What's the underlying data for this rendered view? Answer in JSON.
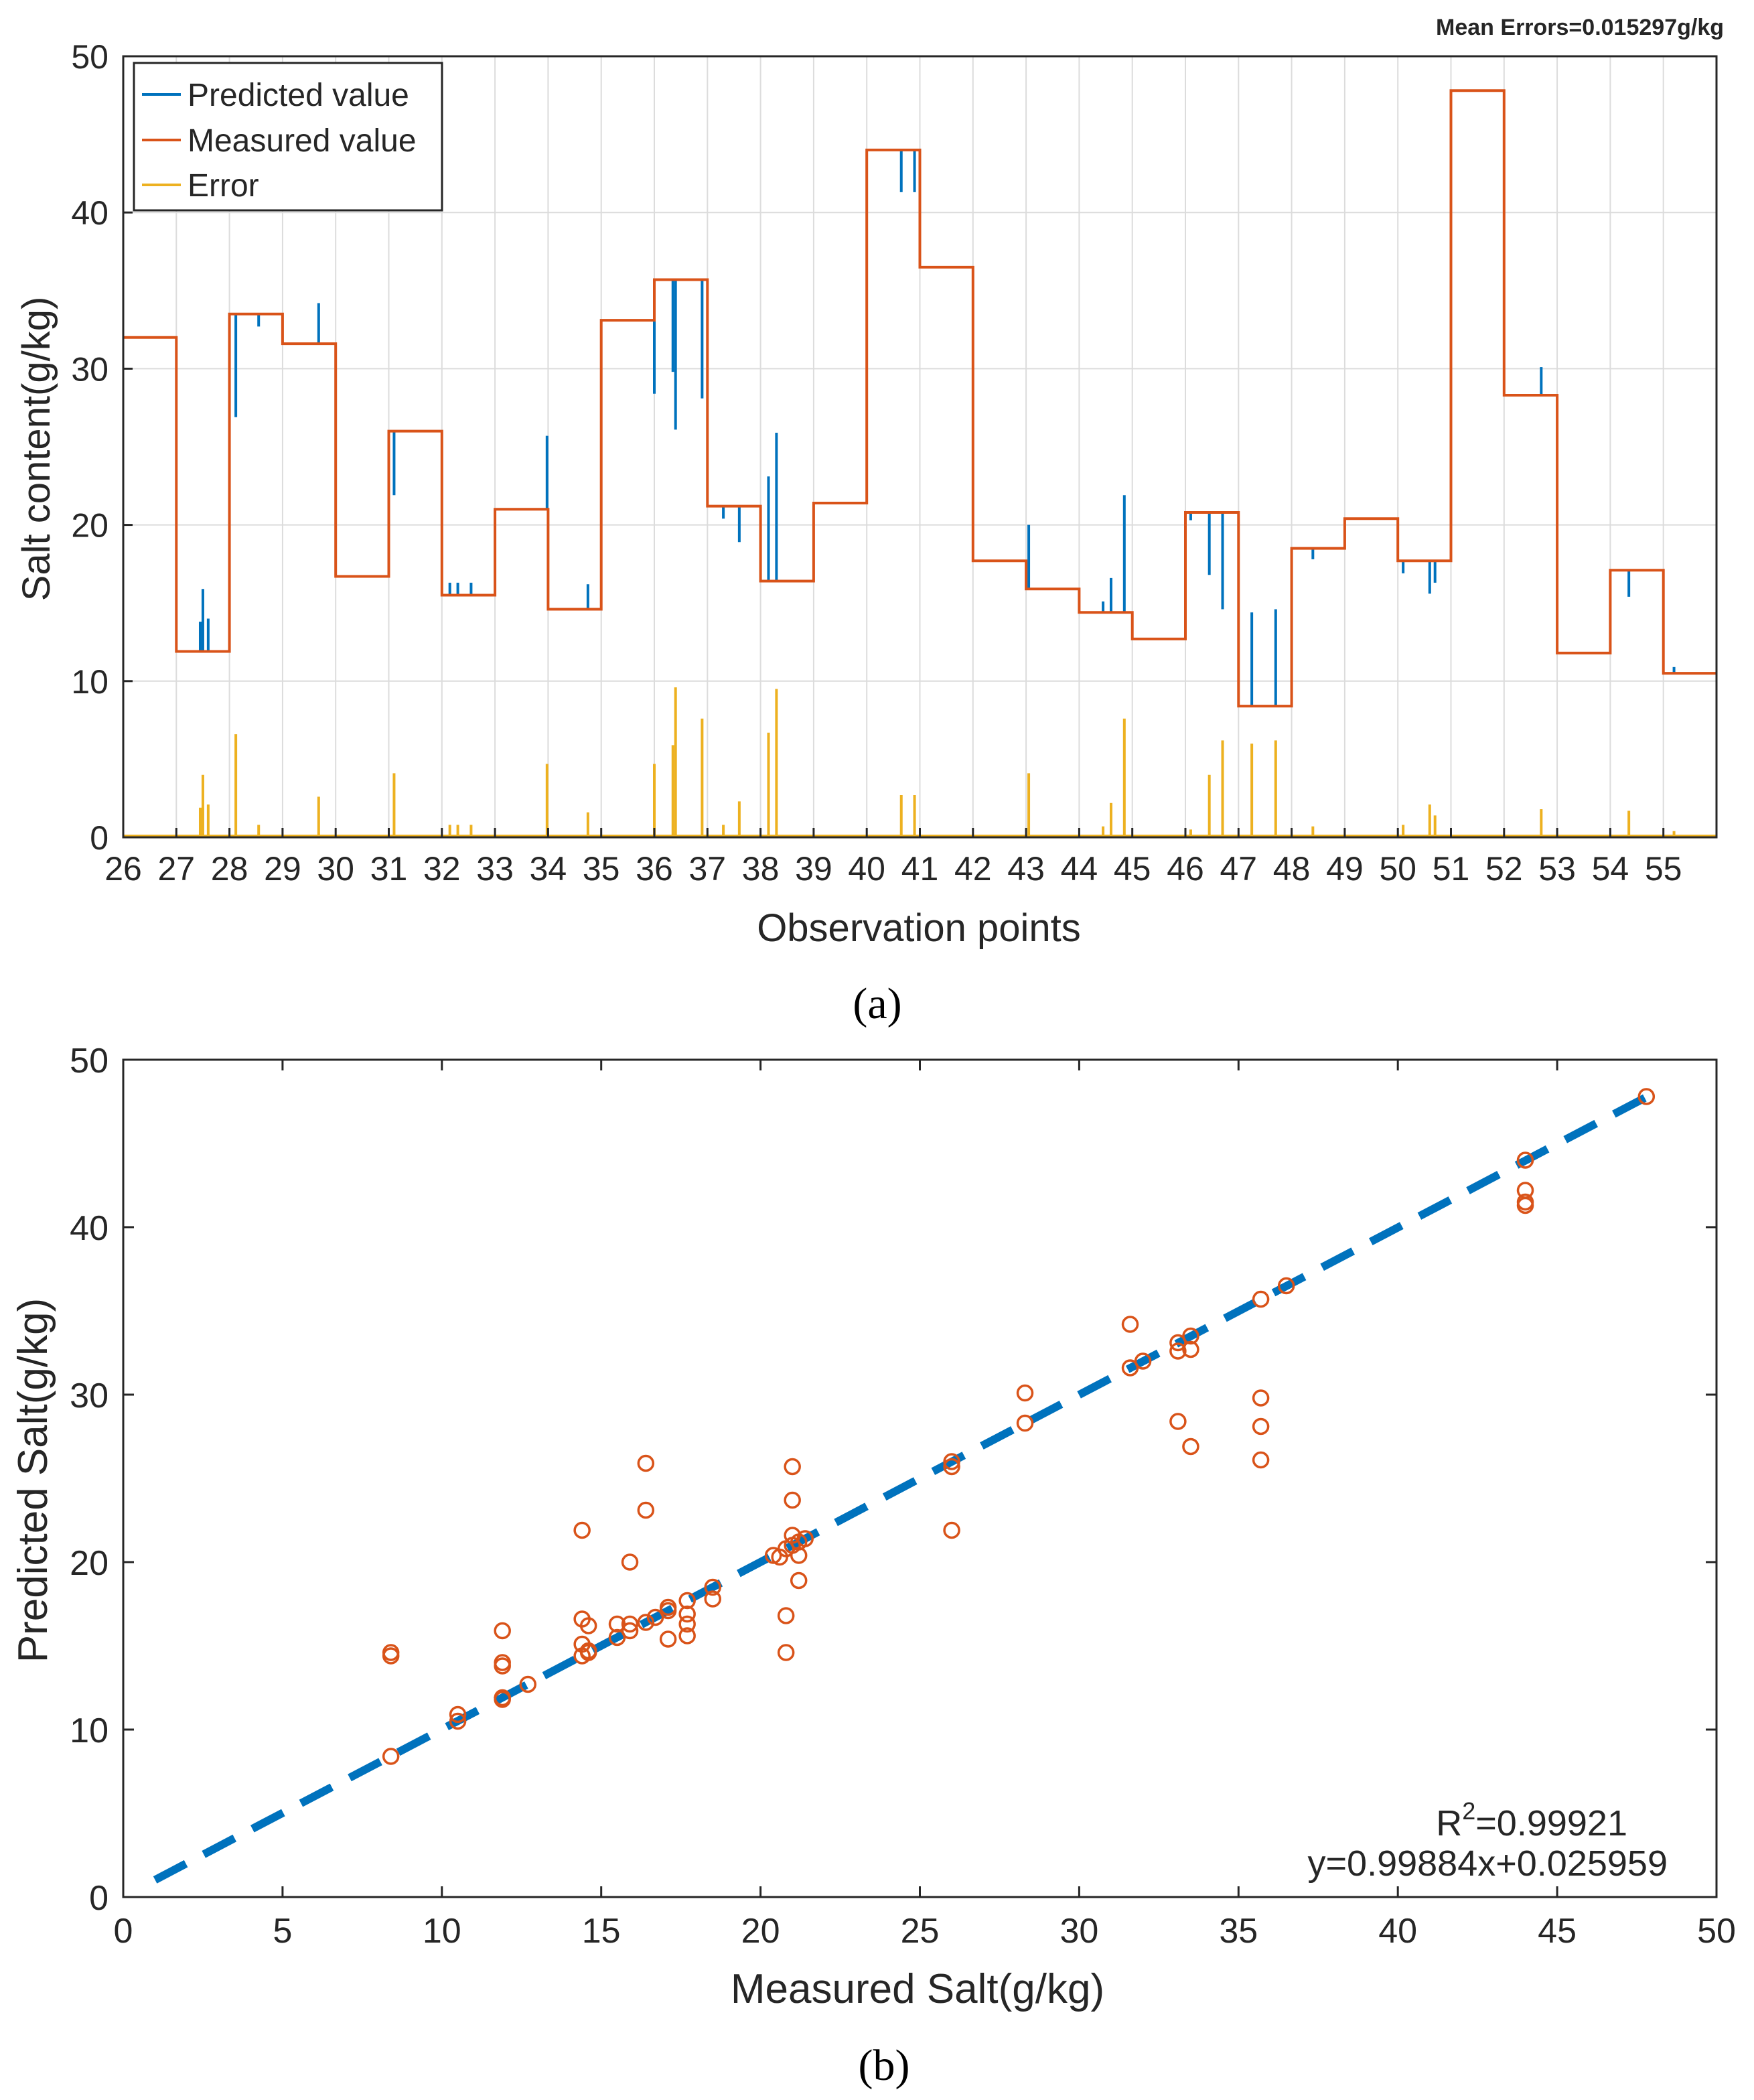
{
  "panel_labels": {
    "a": "(a)",
    "b": "(b)"
  },
  "chart_data": [
    {
      "type": "line",
      "panel": "a",
      "annotation": "Mean Errors=0.015297g/kg",
      "xlabel": "Observation points",
      "ylabel": "Salt content(g/kg)",
      "ylim": [
        0,
        50
      ],
      "yticks": [
        0,
        10,
        20,
        30,
        40,
        50
      ],
      "xlim": [
        26,
        56
      ],
      "xticks": [
        26,
        27,
        28,
        29,
        30,
        31,
        32,
        33,
        34,
        35,
        36,
        37,
        38,
        39,
        40,
        41,
        42,
        43,
        44,
        45,
        46,
        47,
        48,
        49,
        50,
        51,
        52,
        53,
        54,
        55
      ],
      "grid": true,
      "legend": {
        "position": "top-left",
        "entries": [
          "Predicted value",
          "Measured value",
          "Error"
        ]
      },
      "colors": {
        "predicted": "#0072BD",
        "measured": "#D95319",
        "error": "#EDB120"
      },
      "measured_steps": [
        {
          "from": 26,
          "to": 27,
          "value": 32
        },
        {
          "from": 27,
          "to": 28,
          "value": 11.9
        },
        {
          "from": 28,
          "to": 29,
          "value": 33.5
        },
        {
          "from": 29,
          "to": 30,
          "value": 31.6
        },
        {
          "from": 30,
          "to": 31,
          "value": 16.7
        },
        {
          "from": 31,
          "to": 32,
          "value": 26
        },
        {
          "from": 32,
          "to": 33,
          "value": 15.5
        },
        {
          "from": 33,
          "to": 34,
          "value": 21
        },
        {
          "from": 34,
          "to": 35,
          "value": 14.6
        },
        {
          "from": 35,
          "to": 36,
          "value": 33.1
        },
        {
          "from": 36,
          "to": 37,
          "value": 35.7
        },
        {
          "from": 37,
          "to": 38,
          "value": 21.2
        },
        {
          "from": 38,
          "to": 39,
          "value": 16.4
        },
        {
          "from": 39,
          "to": 40,
          "value": 21.4
        },
        {
          "from": 40,
          "to": 41,
          "value": 44
        },
        {
          "from": 41,
          "to": 42,
          "value": 36.5
        },
        {
          "from": 42,
          "to": 43,
          "value": 17.7
        },
        {
          "from": 43,
          "to": 44,
          "value": 15.9
        },
        {
          "from": 44,
          "to": 45,
          "value": 14.4
        },
        {
          "from": 45,
          "to": 46,
          "value": 12.7
        },
        {
          "from": 46,
          "to": 47,
          "value": 20.8
        },
        {
          "from": 47,
          "to": 48,
          "value": 8.4
        },
        {
          "from": 48,
          "to": 49,
          "value": 18.5
        },
        {
          "from": 49,
          "to": 50,
          "value": 20.4
        },
        {
          "from": 50,
          "to": 51,
          "value": 17.7
        },
        {
          "from": 51,
          "to": 52,
          "value": 47.8
        },
        {
          "from": 52,
          "to": 53,
          "value": 28.3
        },
        {
          "from": 53,
          "to": 54,
          "value": 11.8
        },
        {
          "from": 54,
          "to": 55,
          "value": 17.1
        },
        {
          "from": 55,
          "to": 56,
          "value": 10.5
        }
      ],
      "prediction_spikes": [
        {
          "x": 27.45,
          "base": 11.9,
          "value": 13.8
        },
        {
          "x": 27.5,
          "base": 11.9,
          "value": 15.9
        },
        {
          "x": 27.6,
          "base": 11.9,
          "value": 14
        },
        {
          "x": 28.12,
          "base": 33.5,
          "value": 26.9
        },
        {
          "x": 28.55,
          "base": 33.5,
          "value": 32.7
        },
        {
          "x": 29.68,
          "base": 31.6,
          "value": 34.2
        },
        {
          "x": 31.1,
          "base": 26,
          "value": 21.9
        },
        {
          "x": 32.15,
          "base": 15.5,
          "value": 16.3
        },
        {
          "x": 32.3,
          "base": 15.5,
          "value": 16.3
        },
        {
          "x": 32.55,
          "base": 15.5,
          "value": 16.3
        },
        {
          "x": 33.98,
          "base": 21,
          "value": 25.7
        },
        {
          "x": 34.75,
          "base": 14.6,
          "value": 16.2
        },
        {
          "x": 36,
          "base": 33.1,
          "value": 28.4
        },
        {
          "x": 36.35,
          "base": 35.7,
          "value": 29.8
        },
        {
          "x": 36.4,
          "base": 35.7,
          "value": 26.1
        },
        {
          "x": 36.9,
          "base": 35.7,
          "value": 28.1
        },
        {
          "x": 37.3,
          "base": 21.2,
          "value": 20.4
        },
        {
          "x": 37.6,
          "base": 21.2,
          "value": 18.9
        },
        {
          "x": 38.15,
          "base": 16.4,
          "value": 23.1
        },
        {
          "x": 38.3,
          "base": 16.4,
          "value": 25.9
        },
        {
          "x": 40.65,
          "base": 44,
          "value": 41.3
        },
        {
          "x": 40.9,
          "base": 44,
          "value": 41.3
        },
        {
          "x": 43.05,
          "base": 15.9,
          "value": 20
        },
        {
          "x": 44.45,
          "base": 14.4,
          "value": 15.1
        },
        {
          "x": 44.6,
          "base": 14.4,
          "value": 16.6
        },
        {
          "x": 44.85,
          "base": 14.4,
          "value": 21.9
        },
        {
          "x": 46.1,
          "base": 20.8,
          "value": 20.3
        },
        {
          "x": 46.45,
          "base": 20.8,
          "value": 16.8
        },
        {
          "x": 46.7,
          "base": 20.8,
          "value": 14.6
        },
        {
          "x": 47.25,
          "base": 8.4,
          "value": 14.4
        },
        {
          "x": 47.7,
          "base": 8.4,
          "value": 14.6
        },
        {
          "x": 48.4,
          "base": 18.5,
          "value": 17.8
        },
        {
          "x": 50.1,
          "base": 17.7,
          "value": 16.9
        },
        {
          "x": 50.6,
          "base": 17.7,
          "value": 15.6
        },
        {
          "x": 50.7,
          "base": 17.7,
          "value": 16.3
        },
        {
          "x": 52.7,
          "base": 28.3,
          "value": 30.1
        },
        {
          "x": 54.35,
          "base": 17.1,
          "value": 15.4
        },
        {
          "x": 55.2,
          "base": 10.5,
          "value": 10.9
        }
      ],
      "error_spikes": [
        {
          "x": 27.45,
          "value": 1.9
        },
        {
          "x": 27.5,
          "value": 4
        },
        {
          "x": 27.6,
          "value": 2.1
        },
        {
          "x": 28.12,
          "value": 6.6
        },
        {
          "x": 28.55,
          "value": 0.8
        },
        {
          "x": 29.68,
          "value": 2.6
        },
        {
          "x": 31.1,
          "value": 4.1
        },
        {
          "x": 32.15,
          "value": 0.8
        },
        {
          "x": 32.3,
          "value": 0.8
        },
        {
          "x": 32.55,
          "value": 0.8
        },
        {
          "x": 33.98,
          "value": 4.7
        },
        {
          "x": 34.75,
          "value": 1.6
        },
        {
          "x": 36,
          "value": 4.7
        },
        {
          "x": 36.35,
          "value": 5.9
        },
        {
          "x": 36.4,
          "value": 9.6
        },
        {
          "x": 36.9,
          "value": 7.6
        },
        {
          "x": 37.3,
          "value": 0.8
        },
        {
          "x": 37.6,
          "value": 2.3
        },
        {
          "x": 38.15,
          "value": 6.7
        },
        {
          "x": 38.3,
          "value": 9.5
        },
        {
          "x": 40.65,
          "value": 2.7
        },
        {
          "x": 40.9,
          "value": 2.7
        },
        {
          "x": 43.05,
          "value": 4.1
        },
        {
          "x": 44.45,
          "value": 0.7
        },
        {
          "x": 44.6,
          "value": 2.2
        },
        {
          "x": 44.85,
          "value": 7.6
        },
        {
          "x": 46.1,
          "value": 0.5
        },
        {
          "x": 46.45,
          "value": 4
        },
        {
          "x": 46.7,
          "value": 6.2
        },
        {
          "x": 47.25,
          "value": 6
        },
        {
          "x": 47.7,
          "value": 6.2
        },
        {
          "x": 48.4,
          "value": 0.7
        },
        {
          "x": 50.1,
          "value": 0.8
        },
        {
          "x": 50.6,
          "value": 2.1
        },
        {
          "x": 50.7,
          "value": 1.4
        },
        {
          "x": 52.7,
          "value": 1.8
        },
        {
          "x": 54.35,
          "value": 1.7
        },
        {
          "x": 55.2,
          "value": 0.4
        }
      ]
    },
    {
      "type": "scatter",
      "panel": "b",
      "xlabel": "Measured Salt(g/kg)",
      "ylabel": "Predicted Salt(g/kg)",
      "xlim": [
        0,
        50
      ],
      "ylim": [
        0,
        50
      ],
      "xticks": [
        0,
        5,
        10,
        15,
        20,
        25,
        30,
        35,
        40,
        45,
        50
      ],
      "yticks": [
        0,
        10,
        20,
        30,
        40,
        50
      ],
      "grid": false,
      "annotations": {
        "r2_prefix": "R",
        "r2_sup": "2",
        "r2_value": "=0.99921",
        "equation": "y=0.99884x+0.025959"
      },
      "fit_line": {
        "slope": 0.99884,
        "intercept": 0.025959,
        "x_range": [
          1,
          47.8
        ]
      },
      "colors": {
        "points": "#D95319",
        "fit": "#0072BD"
      },
      "points": [
        [
          8.4,
          8.4
        ],
        [
          8.4,
          14.4
        ],
        [
          8.4,
          14.6
        ],
        [
          10.5,
          10.5
        ],
        [
          10.5,
          10.9
        ],
        [
          11.9,
          11.8
        ],
        [
          11.9,
          11.9
        ],
        [
          11.9,
          13.8
        ],
        [
          11.9,
          14
        ],
        [
          11.9,
          15.9
        ],
        [
          12.7,
          12.7
        ],
        [
          14.4,
          14.4
        ],
        [
          14.4,
          15.1
        ],
        [
          14.4,
          16.6
        ],
        [
          14.4,
          21.9
        ],
        [
          14.6,
          14.6
        ],
        [
          14.6,
          14.7
        ],
        [
          14.6,
          16.2
        ],
        [
          15.5,
          15.5
        ],
        [
          15.5,
          16.3
        ],
        [
          15.9,
          15.9
        ],
        [
          15.9,
          16.3
        ],
        [
          15.9,
          20
        ],
        [
          16.4,
          16.4
        ],
        [
          16.4,
          23.1
        ],
        [
          16.4,
          25.9
        ],
        [
          16.7,
          16.7
        ],
        [
          17.1,
          15.4
        ],
        [
          17.1,
          17.1
        ],
        [
          17.1,
          17.3
        ],
        [
          17.7,
          15.6
        ],
        [
          17.7,
          16.3
        ],
        [
          17.7,
          16.9
        ],
        [
          17.7,
          17.7
        ],
        [
          18.5,
          17.8
        ],
        [
          18.5,
          18.5
        ],
        [
          20.4,
          20.4
        ],
        [
          20.6,
          20.3
        ],
        [
          20.8,
          14.6
        ],
        [
          20.8,
          16.8
        ],
        [
          20.8,
          20.8
        ],
        [
          21,
          21
        ],
        [
          21,
          25.7
        ],
        [
          21,
          23.7
        ],
        [
          21,
          21.6
        ],
        [
          21.2,
          18.9
        ],
        [
          21.2,
          20.4
        ],
        [
          21.2,
          21.2
        ],
        [
          21.4,
          21.4
        ],
        [
          26,
          21.9
        ],
        [
          26,
          25.7
        ],
        [
          26,
          26
        ],
        [
          28.3,
          28.3
        ],
        [
          28.3,
          30.1
        ],
        [
          31.6,
          31.6
        ],
        [
          31.6,
          34.2
        ],
        [
          32,
          32
        ],
        [
          33.1,
          28.4
        ],
        [
          33.1,
          32.6
        ],
        [
          33.1,
          33.1
        ],
        [
          33.5,
          26.9
        ],
        [
          33.5,
          32.7
        ],
        [
          33.5,
          33.5
        ],
        [
          35.7,
          26.1
        ],
        [
          35.7,
          28.1
        ],
        [
          35.7,
          29.8
        ],
        [
          35.7,
          35.7
        ],
        [
          36.5,
          36.5
        ],
        [
          44,
          41.3
        ],
        [
          44,
          41.5
        ],
        [
          44,
          42.2
        ],
        [
          44,
          44
        ],
        [
          47.8,
          47.8
        ]
      ]
    }
  ]
}
